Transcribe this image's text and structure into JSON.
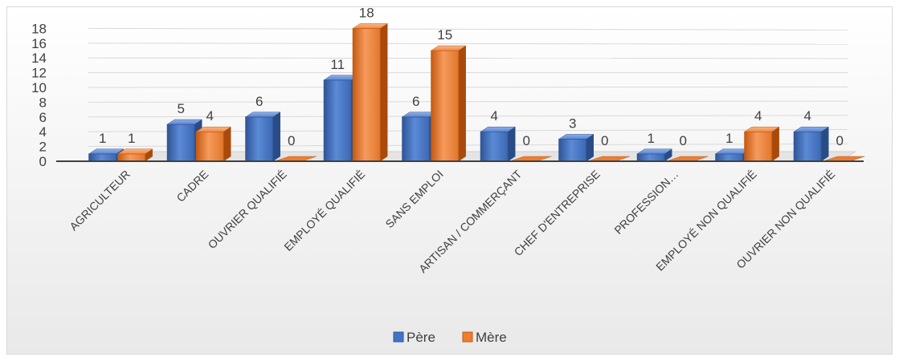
{
  "chart_data": {
    "type": "bar",
    "categories": [
      "AGRICULTEUR",
      "CADRE",
      "OUVRIER QUALIFIÉ",
      "EMPLOYÉ QUALIFIÉ",
      "SANS EMPLOI",
      "ARTISAN / COMMERÇANT",
      "CHEF D'ENTREPRISE",
      "PROFESSION…",
      "EMPLOYÉ NON QUALIFIÉ",
      "OUVRIER NON QUALIFIÉ"
    ],
    "series": [
      {
        "name": "Père",
        "color": "#4472C4",
        "values": [
          1,
          5,
          6,
          11,
          6,
          4,
          3,
          1,
          1,
          4
        ]
      },
      {
        "name": "Mère",
        "color": "#ED7D31",
        "values": [
          1,
          4,
          0,
          18,
          15,
          0,
          0,
          0,
          4,
          0
        ]
      }
    ],
    "y_ticks": [
      "0",
      "2",
      "4",
      "6",
      "8",
      "10",
      "12",
      "14",
      "16",
      "18"
    ],
    "ylim": [
      0,
      18
    ],
    "title": "",
    "xlabel": "",
    "ylabel": "",
    "grid": true,
    "legend_position": "bottom",
    "three_d": true
  }
}
